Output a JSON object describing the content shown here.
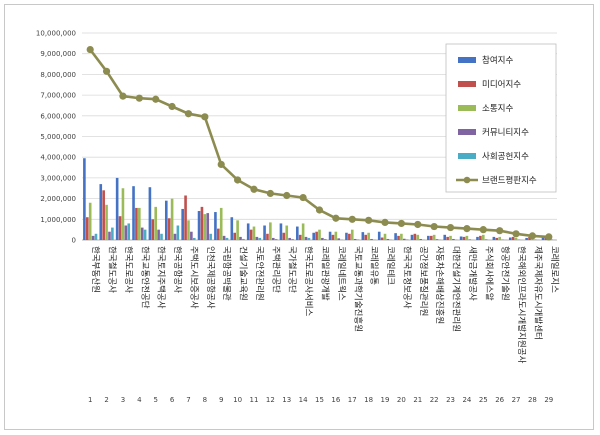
{
  "chart_data": {
    "type": "bar",
    "title": "",
    "xlabel": "",
    "ylabel": "",
    "ylim": [
      0,
      10000000
    ],
    "yticks": [
      "0",
      "1,000,000",
      "2,000,000",
      "3,000,000",
      "4,000,000",
      "5,000,000",
      "6,000,000",
      "7,000,000",
      "8,000,000",
      "9,000,000",
      "10,000,000"
    ],
    "grid": true,
    "legend_position": "right",
    "x": [
      "1",
      "2",
      "3",
      "4",
      "5",
      "6",
      "7",
      "8",
      "9",
      "10",
      "11",
      "12",
      "13",
      "14",
      "15",
      "16",
      "17",
      "18",
      "19",
      "20",
      "21",
      "22",
      "23",
      "24",
      "25",
      "26",
      "27",
      "28",
      "29"
    ],
    "categories": [
      "한국부동산원",
      "한국철도공사",
      "한국도로공사",
      "한국교통안전공단",
      "한국토지주택공사",
      "한국공항공사",
      "주택도시보증공사",
      "인천국제공항공사",
      "국립항공박물관",
      "건설기술교육원",
      "국토안전관리원",
      "주택관리공단",
      "국가철도공단",
      "한국도로공사서비스",
      "코레일관광개발",
      "코레일네트웍스",
      "국토교통과학기술진흥원",
      "코레일유통",
      "코레일테크",
      "한국국토정보공사",
      "공간정보품질관리원",
      "자동차손해배상진흥원",
      "대한건설기계안전관리원",
      "새만금개발공사",
      "주식회사에스알",
      "항공안전기술원",
      "한국해외인프라도시개발지원공사",
      "제주국제자유도시개발센터",
      "코레일로지스"
    ],
    "series": [
      {
        "name": "참여지수",
        "kind": "bar",
        "color": "#4472c4",
        "values": [
          3950000,
          2700000,
          3000000,
          2600000,
          2550000,
          1900000,
          1500000,
          1400000,
          1350000,
          1100000,
          800000,
          700000,
          800000,
          650000,
          350000,
          400000,
          350000,
          380000,
          400000,
          330000,
          250000,
          200000,
          250000,
          170000,
          150000,
          150000,
          120000,
          100000,
          120000
        ]
      },
      {
        "name": "미디어지수",
        "kind": "bar",
        "color": "#c0504d",
        "values": [
          1100000,
          2400000,
          1150000,
          1550000,
          1000000,
          1050000,
          2150000,
          1600000,
          550000,
          350000,
          500000,
          300000,
          350000,
          250000,
          400000,
          250000,
          300000,
          250000,
          120000,
          200000,
          300000,
          200000,
          150000,
          150000,
          200000,
          100000,
          150000,
          150000,
          150000
        ]
      },
      {
        "name": "소통지수",
        "kind": "bar",
        "color": "#9bbb59",
        "values": [
          1800000,
          1700000,
          2500000,
          1550000,
          1600000,
          2000000,
          950000,
          1250000,
          1550000,
          950000,
          650000,
          850000,
          700000,
          800000,
          500000,
          400000,
          500000,
          350000,
          300000,
          300000,
          250000,
          250000,
          200000,
          200000,
          250000,
          150000,
          100000,
          80000,
          80000
        ]
      },
      {
        "name": "커뮤니티지수",
        "kind": "bar",
        "color": "#8064a2",
        "values": [
          200000,
          400000,
          700000,
          600000,
          500000,
          300000,
          400000,
          1300000,
          200000,
          150000,
          150000,
          100000,
          100000,
          150000,
          100000,
          80000,
          50000,
          50000,
          50000,
          60000,
          50000,
          40000,
          50000,
          30000,
          30000,
          20000,
          20000,
          20000,
          20000
        ]
      },
      {
        "name": "사회공헌지수",
        "kind": "bar",
        "color": "#4bacc6",
        "values": [
          300000,
          600000,
          800000,
          500000,
          300000,
          700000,
          100000,
          300000,
          100000,
          50000,
          100000,
          50000,
          50000,
          100000,
          50000,
          20000,
          30000,
          20000,
          20000,
          30000,
          20000,
          20000,
          20000,
          10000,
          10000,
          10000,
          10000,
          10000,
          10000
        ]
      },
      {
        "name": "브랜드평판지수",
        "kind": "line",
        "color": "#8c8c50",
        "values": [
          9200000,
          8150000,
          6950000,
          6850000,
          6800000,
          6450000,
          6100000,
          5950000,
          3650000,
          2900000,
          2450000,
          2250000,
          2150000,
          2050000,
          1450000,
          1050000,
          1000000,
          950000,
          850000,
          800000,
          750000,
          650000,
          600000,
          550000,
          500000,
          450000,
          300000,
          200000,
          150000
        ]
      }
    ]
  }
}
